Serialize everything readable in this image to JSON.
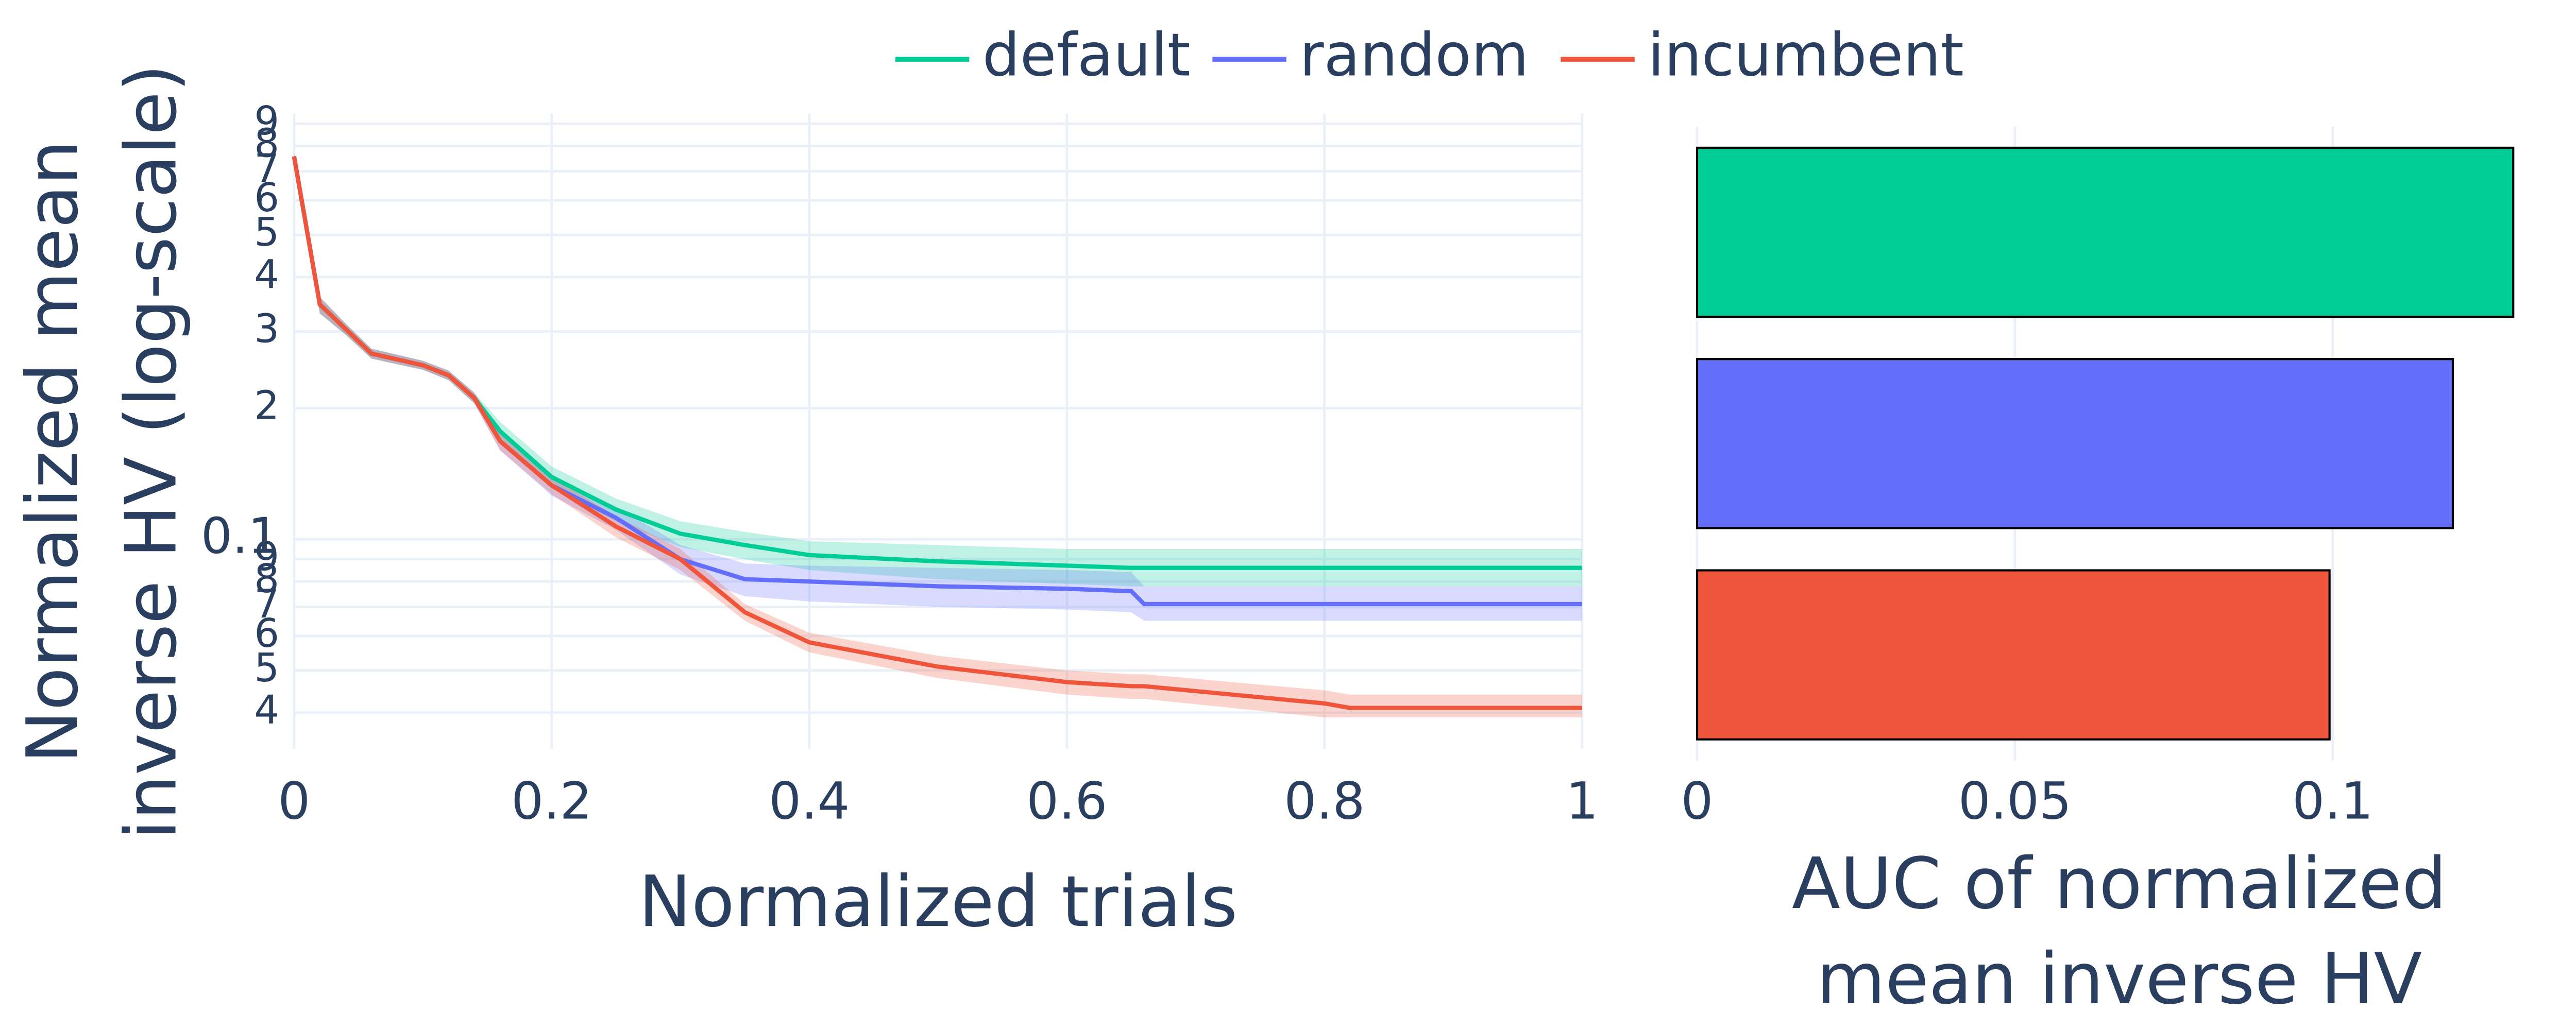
{
  "chart_data": [
    {
      "type": "line",
      "xlabel": "Normalized trials",
      "ylabel": [
        "Normalized mean",
        "inverse HV (log-scale)"
      ],
      "log_y": true,
      "grid": true,
      "legend": "top",
      "xlim": [
        0,
        1
      ],
      "xticks": [
        0,
        0.2,
        0.4,
        0.6,
        0.8,
        1
      ],
      "ylim": [
        0.033,
        0.95
      ],
      "yticks": [
        {
          "value": 0.04,
          "label": "4"
        },
        {
          "value": 0.05,
          "label": "5"
        },
        {
          "value": 0.06,
          "label": "6"
        },
        {
          "value": 0.07,
          "label": "7"
        },
        {
          "value": 0.08,
          "label": "8"
        },
        {
          "value": 0.09,
          "label": "9"
        },
        0.1,
        {
          "value": 0.2,
          "label": "2"
        },
        {
          "value": 0.3,
          "label": "3"
        },
        {
          "value": 0.4,
          "label": "4"
        },
        {
          "value": 0.5,
          "label": "5"
        },
        {
          "value": 0.6,
          "label": "6"
        },
        {
          "value": 0.7,
          "label": "7"
        },
        {
          "value": 0.8,
          "label": "8"
        },
        {
          "value": 0.9,
          "label": "9"
        }
      ],
      "x": [
        0,
        0.02,
        0.04,
        0.06,
        0.1,
        0.12,
        0.14,
        0.16,
        0.2,
        0.25,
        0.3,
        0.35,
        0.4,
        0.5,
        0.6,
        0.65,
        0.66,
        0.8,
        0.82,
        1
      ],
      "series": [
        {
          "name": "default",
          "color": "#00cc96",
          "values": [
            0.757,
            0.346,
            0.304,
            0.267,
            0.251,
            0.238,
            0.211,
            0.177,
            0.139,
            0.117,
            0.103,
            0.097,
            0.092,
            0.089,
            0.087,
            0.086,
            0.086,
            0.086,
            0.086,
            0.086
          ],
          "lower": [
            0.74,
            0.33,
            0.295,
            0.26,
            0.245,
            0.232,
            0.205,
            0.168,
            0.131,
            0.11,
            0.096,
            0.09,
            0.085,
            0.081,
            0.079,
            0.078,
            0.078,
            0.078,
            0.078,
            0.078
          ],
          "upper": [
            0.77,
            0.36,
            0.313,
            0.274,
            0.257,
            0.244,
            0.217,
            0.186,
            0.147,
            0.124,
            0.11,
            0.104,
            0.099,
            0.097,
            0.095,
            0.095,
            0.095,
            0.095,
            0.095,
            0.095
          ]
        },
        {
          "name": "random",
          "color": "#636efa",
          "values": [
            0.757,
            0.346,
            0.304,
            0.267,
            0.251,
            0.238,
            0.211,
            0.168,
            0.133,
            0.112,
            0.09,
            0.081,
            0.08,
            0.078,
            0.077,
            0.076,
            0.071,
            0.071,
            0.071,
            0.071
          ],
          "lower": [
            0.74,
            0.33,
            0.295,
            0.26,
            0.245,
            0.232,
            0.205,
            0.16,
            0.126,
            0.105,
            0.083,
            0.074,
            0.072,
            0.07,
            0.069,
            0.068,
            0.065,
            0.065,
            0.065,
            0.065
          ],
          "upper": [
            0.77,
            0.36,
            0.313,
            0.274,
            0.257,
            0.244,
            0.217,
            0.176,
            0.14,
            0.119,
            0.097,
            0.088,
            0.087,
            0.086,
            0.085,
            0.084,
            0.078,
            0.078,
            0.078,
            0.078
          ]
        },
        {
          "name": "incumbent",
          "color": "#ef553b",
          "values": [
            0.757,
            0.346,
            0.304,
            0.267,
            0.251,
            0.238,
            0.211,
            0.168,
            0.133,
            0.107,
            0.09,
            0.068,
            0.058,
            0.051,
            0.047,
            0.046,
            0.046,
            0.042,
            0.041,
            0.041
          ],
          "lower": [
            0.74,
            0.33,
            0.295,
            0.26,
            0.245,
            0.232,
            0.205,
            0.16,
            0.127,
            0.101,
            0.085,
            0.065,
            0.055,
            0.048,
            0.044,
            0.043,
            0.043,
            0.039,
            0.039,
            0.039
          ],
          "upper": [
            0.77,
            0.36,
            0.313,
            0.274,
            0.257,
            0.244,
            0.217,
            0.176,
            0.139,
            0.113,
            0.095,
            0.071,
            0.061,
            0.054,
            0.05,
            0.049,
            0.049,
            0.045,
            0.044,
            0.044
          ]
        }
      ]
    },
    {
      "type": "hbar",
      "xlabel": [
        "AUC of normalized",
        "mean inverse HV"
      ],
      "xlim": [
        0,
        0.13
      ],
      "xticks": [
        0,
        0.05,
        0.1
      ],
      "categories": [
        null,
        null,
        null
      ],
      "values": [
        0.1284,
        0.1189,
        0.0995
      ],
      "colors": [
        "#00cc96",
        "#636efa",
        "#ef553b"
      ]
    }
  ]
}
